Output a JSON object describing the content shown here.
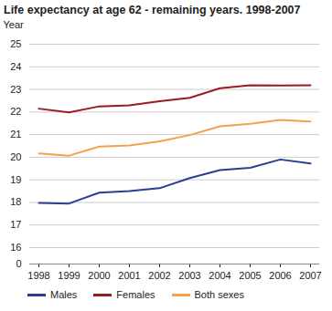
{
  "chart_data": {
    "type": "line",
    "title": "Life expectancy at age 62 - remaining years. 1998-2007",
    "y_label": "Year",
    "categories": [
      "1998",
      "1999",
      "2000",
      "2001",
      "2002",
      "2003",
      "2004",
      "2005",
      "2006",
      "2007"
    ],
    "series": [
      {
        "name": "Males",
        "color": "#2b3f8f",
        "values": [
          17.98,
          17.95,
          18.43,
          18.5,
          18.63,
          19.08,
          19.43,
          19.53,
          19.9,
          19.72
        ]
      },
      {
        "name": "Females",
        "color": "#9b1b22",
        "values": [
          22.15,
          21.98,
          22.25,
          22.3,
          22.48,
          22.63,
          23.05,
          23.18,
          23.17,
          23.18
        ]
      },
      {
        "name": "Both sexes",
        "color": "#f4a14b",
        "values": [
          20.17,
          20.07,
          20.47,
          20.52,
          20.7,
          20.98,
          21.37,
          21.48,
          21.65,
          21.58
        ]
      }
    ],
    "ylim": [
      0,
      25
    ],
    "yticks": [
      0,
      16,
      17,
      18,
      19,
      20,
      21,
      22,
      23,
      24,
      25
    ],
    "grid": true,
    "legend": "bottom"
  }
}
